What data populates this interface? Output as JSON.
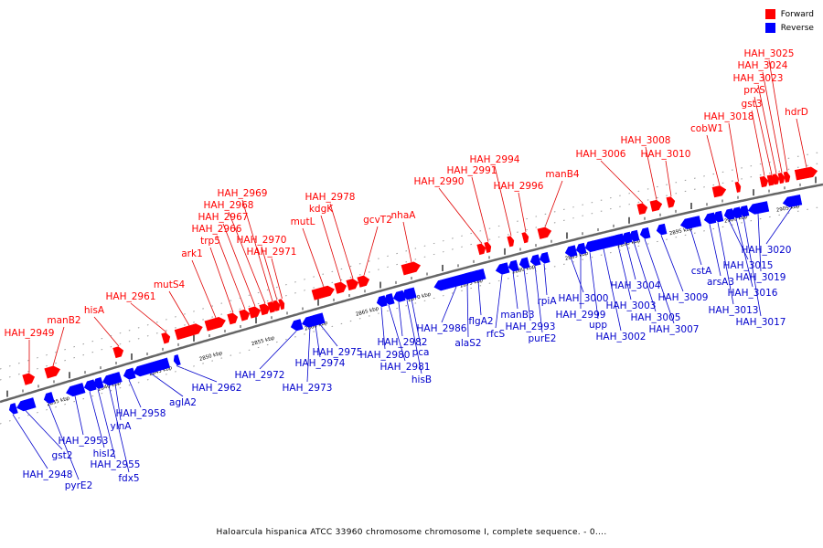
{
  "legend": {
    "forward_label": "Forward",
    "reverse_label": "Reverse",
    "forward_color": "#ff0000",
    "reverse_color": "#0000ff"
  },
  "caption": "Haloarcula hispanica ATCC 33960 chromosome chromosome I, complete sequence. - 0....",
  "scale_labels": [
    "2835 kbp",
    "2840 kbp",
    "2845 kbp",
    "2850 kbp",
    "2855 kbp",
    "2860 kbp",
    "2865 kbp",
    "2870 kbp",
    "2875 kbp",
    "2880 kbp",
    "2885 kbp",
    "2890 kbp",
    "2895 kbp",
    "2900 kbp",
    "2905 kbp"
  ],
  "forward_genes": [
    "HAH_2949",
    "manB2",
    "hisA",
    "HAH_2961",
    "mutS4",
    "ark1",
    "trp5",
    "HAH_2966",
    "HAH_2967",
    "HAH_2968",
    "HAH_2969",
    "HAH_2970",
    "HAH_2971",
    "mutL",
    "kdgK",
    "HAH_2978",
    "gcvT2",
    "nhaA",
    "HAH_2990",
    "HAH_2991",
    "HAH_2994",
    "HAH_2996",
    "manB4",
    "HAH_3006",
    "HAH_3008",
    "HAH_3010",
    "cobW1",
    "HAH_3018",
    "gst3",
    "prxS",
    "HAH_3023",
    "HAH_3024",
    "HAH_3025",
    "hdrD"
  ],
  "reverse_genes": [
    "HAH_2948",
    "gst2",
    "pyrE2",
    "HAH_2953",
    "hisI2",
    "HAH_2955",
    "fdx5",
    "ylnA",
    "HAH_2958",
    "aglA2",
    "HAH_2962",
    "HAH_2972",
    "HAH_2973",
    "HAH_2974",
    "HAH_2975",
    "HAH_2980",
    "HAH_2981",
    "HAH_2982",
    "hisB",
    "pca",
    "HAH_2986",
    "alaS2",
    "flgA2",
    "rfcS",
    "manB3",
    "HAH_2993",
    "purE2",
    "rpiA",
    "HAH_3000",
    "HAH_2999",
    "upp",
    "HAH_3002",
    "HAH_3003",
    "HAH_3004",
    "HAH_3005",
    "HAH_3007",
    "HAH_3009",
    "cstA",
    "arsA3",
    "HAH_3013",
    "HAH_3015",
    "HAH_3016",
    "HAH_3017",
    "HAH_3019",
    "HAH_3020"
  ]
}
